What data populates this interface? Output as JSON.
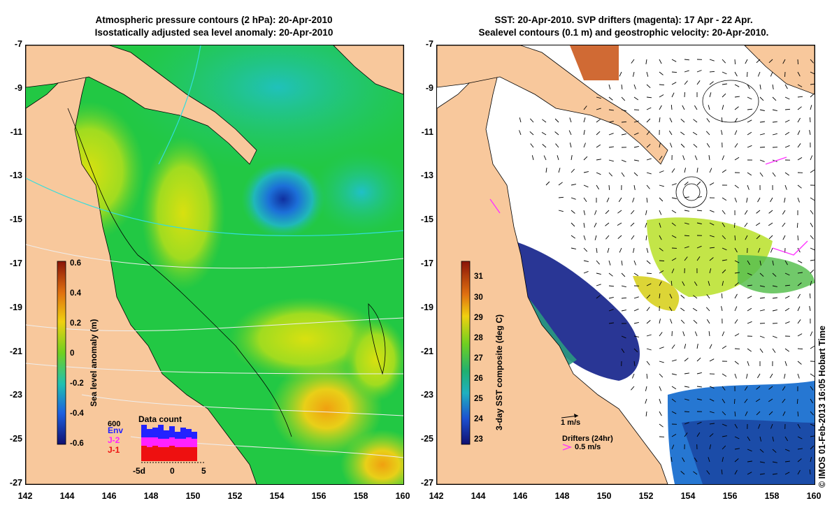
{
  "left_panel": {
    "title_line1": "Atmospheric pressure contours (2 hPa): 20-Apr-2010",
    "title_line2": "Isostatically adjusted sea level anomaly: 20-Apr-2010",
    "colorbar_label": "Sea level anomaly (m)",
    "colorbar_ticks": [
      "0.6",
      "0.4",
      "0.2",
      "0",
      "-0.2",
      "-0.4",
      "-0.6"
    ],
    "data_count": {
      "title": "Data count",
      "ymax": "600",
      "legend": [
        "Env",
        "J-2",
        "J-1"
      ],
      "x_ticks": [
        "-5d",
        "0",
        "5"
      ]
    }
  },
  "right_panel": {
    "title_line1": "SST: 20-Apr-2010. SVP drifters (magenta): 17 Apr - 22 Apr.",
    "title_line2": "Sealevel contours (0.1 m) and geostrophic velocity: 20-Apr-2010.",
    "colorbar_label": "3-day SST composite (deg C)",
    "colorbar_ticks": [
      "31",
      "30",
      "29",
      "28",
      "27",
      "26",
      "25",
      "24",
      "23"
    ],
    "velocity_scale": "1 m/s",
    "drifters_label": "Drifters (24hr)",
    "drifters_scale": "0.5 m/s"
  },
  "axes": {
    "y_ticks": [
      "-7",
      "-9",
      "-11",
      "-13",
      "-15",
      "-17",
      "-19",
      "-21",
      "-23",
      "-25",
      "-27"
    ],
    "x_ticks": [
      "142",
      "144",
      "146",
      "148",
      "150",
      "152",
      "154",
      "156",
      "158",
      "160"
    ]
  },
  "credit": "© IMOS 01-Feb-2013 16:05 Hobart Time",
  "colors": {
    "land": "#f8c89c",
    "ocean_sla": "#22c844",
    "sst_missing": "#ffffff",
    "drifter": "#ff33ff",
    "pressure_contour_cyan": "#33dddd"
  }
}
